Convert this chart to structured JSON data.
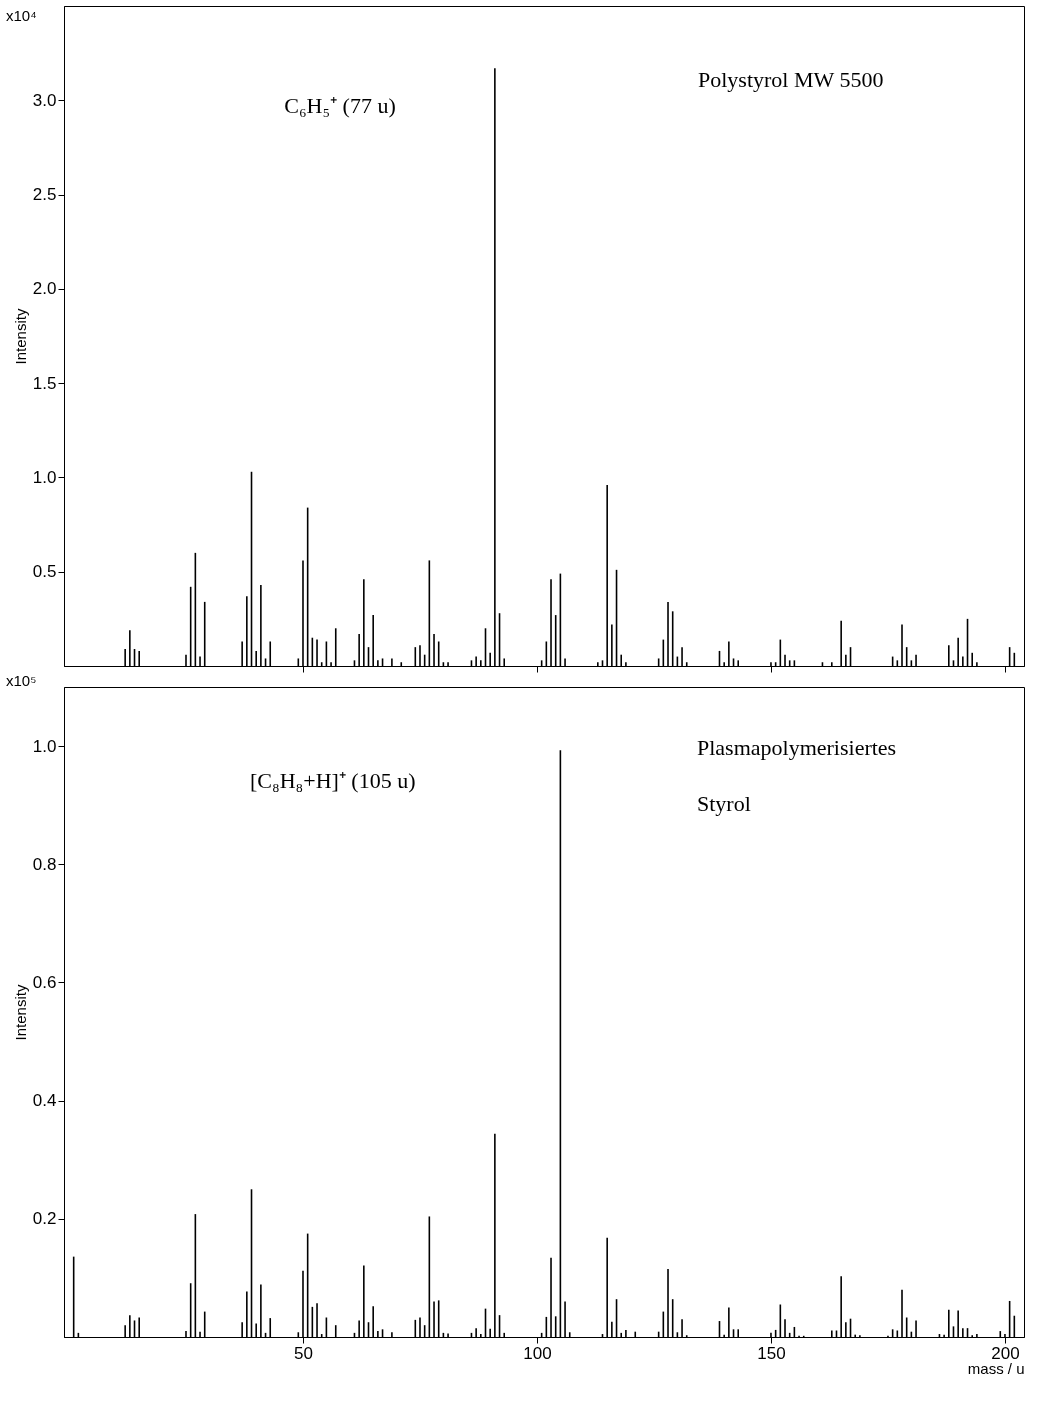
{
  "chart_data": [
    {
      "type": "bar",
      "ylabel": "Intensity",
      "color": "#000000",
      "grid": false,
      "tick_labels": "y",
      "annotations": [
        "x10⁴",
        "C₆H₅⁺ (77 u)",
        "Polystyrol MW 5500"
      ],
      "xlim": [
        0,
        203
      ],
      "xticks": [
        50,
        100,
        150,
        200
      ],
      "ylim": [
        0,
        3.5
      ],
      "yticks": [
        {
          "value": 0.5,
          "label": "0.5"
        },
        {
          "value": 1,
          "label": "1.0"
        },
        {
          "value": 1.5,
          "label": "1.5"
        },
        {
          "value": 2,
          "label": "2.0"
        },
        {
          "value": 2.5,
          "label": "2.5"
        },
        {
          "value": 3,
          "label": "3.0"
        }
      ],
      "x": [
        12,
        13,
        14,
        15,
        25,
        26,
        27,
        28,
        29,
        37,
        38,
        39,
        40,
        41,
        42,
        43,
        49,
        50,
        51,
        52,
        53,
        54,
        55,
        56,
        57,
        61,
        62,
        63,
        64,
        65,
        66,
        67,
        69,
        71,
        74,
        75,
        76,
        77,
        78,
        79,
        80,
        81,
        86,
        87,
        88,
        89,
        90,
        91,
        92,
        93,
        101,
        102,
        103,
        104,
        105,
        106,
        113,
        114,
        115,
        116,
        117,
        118,
        119,
        126,
        127,
        128,
        129,
        130,
        131,
        132,
        139,
        140,
        141,
        142,
        143,
        150,
        151,
        152,
        153,
        154,
        155,
        161,
        163,
        165,
        166,
        167,
        176,
        177,
        178,
        179,
        180,
        181,
        188,
        189,
        190,
        191,
        192,
        193,
        194,
        201,
        202
      ],
      "values": [
        0.09,
        0.19,
        0.09,
        0.08,
        0.06,
        0.42,
        0.6,
        0.05,
        0.34,
        0.13,
        0.37,
        1.03,
        0.08,
        0.43,
        0.04,
        0.13,
        0.04,
        0.56,
        0.84,
        0.15,
        0.14,
        0.02,
        0.13,
        0.02,
        0.2,
        0.03,
        0.17,
        0.46,
        0.1,
        0.27,
        0.03,
        0.04,
        0.04,
        0.02,
        0.1,
        0.11,
        0.06,
        0.56,
        0.17,
        0.13,
        0.02,
        0.02,
        0.03,
        0.05,
        0.03,
        0.2,
        0.07,
        3.17,
        0.28,
        0.04,
        0.03,
        0.13,
        0.46,
        0.27,
        0.49,
        0.04,
        0.02,
        0.03,
        0.96,
        0.22,
        0.51,
        0.06,
        0.02,
        0.04,
        0.14,
        0.34,
        0.29,
        0.05,
        0.1,
        0.02,
        0.08,
        0.02,
        0.13,
        0.04,
        0.03,
        0.02,
        0.02,
        0.14,
        0.06,
        0.03,
        0.03,
        0.02,
        0.02,
        0.24,
        0.06,
        0.1,
        0.05,
        0.03,
        0.22,
        0.1,
        0.03,
        0.06,
        0.11,
        0.03,
        0.15,
        0.05,
        0.25,
        0.07,
        0.02,
        0.1,
        0.07
      ]
    },
    {
      "type": "bar",
      "ylabel": "Intensity",
      "xlabel": "mass / u",
      "color": "#000000",
      "grid": false,
      "annotations": [
        "x10⁵",
        "[C₈H₈+H]⁺ (105 u)",
        "Plasmapolymerisiertes\nStyrol"
      ],
      "xlim": [
        0,
        203
      ],
      "xticks": [
        50,
        100,
        150,
        200
      ],
      "ylim": [
        0,
        1.1
      ],
      "yticks": [
        {
          "value": 0.2,
          "label": "0.2"
        },
        {
          "value": 0.4,
          "label": "0.4"
        },
        {
          "value": 0.6,
          "label": "0.6"
        },
        {
          "value": 0.8,
          "label": "0.8"
        },
        {
          "value": 1,
          "label": "1.0"
        }
      ],
      "x": [
        1,
        2,
        12,
        13,
        14,
        15,
        25,
        26,
        27,
        28,
        29,
        37,
        38,
        39,
        40,
        41,
        42,
        43,
        49,
        50,
        51,
        52,
        53,
        54,
        55,
        57,
        61,
        62,
        63,
        64,
        65,
        66,
        67,
        69,
        74,
        75,
        76,
        77,
        78,
        79,
        80,
        81,
        86,
        87,
        88,
        89,
        90,
        91,
        92,
        93,
        101,
        102,
        103,
        104,
        105,
        106,
        107,
        113,
        114,
        115,
        116,
        117,
        118,
        119,
        121,
        126,
        127,
        128,
        129,
        130,
        131,
        132,
        133,
        139,
        140,
        141,
        142,
        143,
        145,
        150,
        151,
        152,
        153,
        154,
        155,
        156,
        157,
        163,
        164,
        165,
        166,
        167,
        168,
        169,
        175,
        176,
        177,
        178,
        179,
        180,
        181,
        182,
        186,
        187,
        188,
        189,
        190,
        191,
        192,
        193,
        194,
        199,
        200,
        201,
        202
      ],
      "values": [
        0.136,
        0.007,
        0.02,
        0.037,
        0.028,
        0.033,
        0.01,
        0.091,
        0.208,
        0.009,
        0.043,
        0.025,
        0.077,
        0.25,
        0.023,
        0.089,
        0.007,
        0.032,
        0.008,
        0.112,
        0.175,
        0.051,
        0.057,
        0.005,
        0.033,
        0.02,
        0.007,
        0.028,
        0.121,
        0.025,
        0.052,
        0.01,
        0.013,
        0.008,
        0.029,
        0.033,
        0.02,
        0.204,
        0.06,
        0.062,
        0.007,
        0.006,
        0.007,
        0.015,
        0.005,
        0.048,
        0.014,
        0.344,
        0.037,
        0.007,
        0.007,
        0.034,
        0.134,
        0.035,
        0.993,
        0.06,
        0.008,
        null,
        0.005,
        0.168,
        0.026,
        0.064,
        0.007,
        0.012,
        0.009,
        0.009,
        0.043,
        0.115,
        0.064,
        0.008,
        0.03,
        0.003,
        null,
        0.027,
        0.004,
        0.05,
        0.013,
        0.013,
        null,
        0.007,
        0.012,
        0.055,
        0.03,
        0.007,
        0.017,
        0.002,
        0.002,
        0.011,
        0.011,
        0.103,
        0.025,
        0.031,
        0.004,
        0.003,
        0.002,
        0.013,
        0.011,
        0.08,
        0.033,
        0.009,
        0.028,
        null,
        0.005,
        0.004,
        0.046,
        0.018,
        0.045,
        0.015,
        0.015,
        0.003,
        0.005,
        0.01,
        0.005,
        0.061,
        0.036
      ]
    }
  ]
}
